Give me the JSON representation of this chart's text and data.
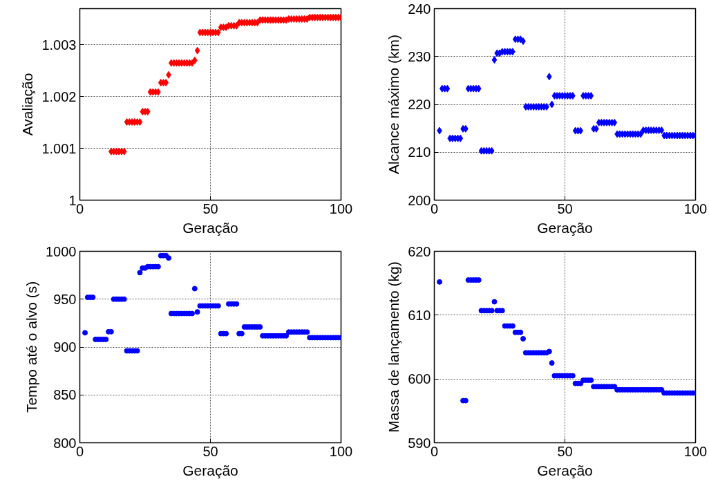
{
  "chart_data": [
    {
      "type": "scatter",
      "xlabel": "Geração",
      "ylabel": "Avaliação",
      "color": "#ff0000",
      "marker": "diamond",
      "grid": true,
      "xlim": [
        0,
        100
      ],
      "xticks": [
        0,
        50,
        100
      ],
      "ylim": [
        1,
        1.0037
      ],
      "yticks": [
        1,
        1.001,
        1.002,
        1.003
      ],
      "x": [
        12,
        13,
        14,
        15,
        16,
        17,
        18,
        19,
        20,
        21,
        22,
        23,
        24,
        25,
        26,
        27,
        28,
        29,
        30,
        31,
        32,
        33,
        34,
        35,
        36,
        37,
        38,
        39,
        40,
        41,
        42,
        43,
        44,
        45,
        46,
        47,
        48,
        49,
        50,
        51,
        52,
        53,
        54,
        55,
        56,
        57,
        58,
        59,
        60,
        61,
        62,
        63,
        64,
        65,
        66,
        67,
        68,
        69,
        70,
        71,
        72,
        73,
        74,
        75,
        76,
        77,
        78,
        79,
        80,
        81,
        82,
        83,
        84,
        85,
        86,
        87,
        88,
        89,
        90,
        91,
        92,
        93,
        94,
        95,
        96,
        97,
        98,
        99,
        100
      ],
      "values": [
        1.00094,
        1.00094,
        1.00094,
        1.00094,
        1.00094,
        1.00094,
        1.00151,
        1.00151,
        1.00151,
        1.00151,
        1.00151,
        1.00151,
        1.00171,
        1.00171,
        1.00171,
        1.00209,
        1.00209,
        1.00209,
        1.00209,
        1.00227,
        1.00227,
        1.00227,
        1.00242,
        1.00265,
        1.00265,
        1.00265,
        1.00265,
        1.00265,
        1.00265,
        1.00265,
        1.00265,
        1.00265,
        1.0027,
        1.00289,
        1.00324,
        1.00324,
        1.00324,
        1.00324,
        1.00324,
        1.00324,
        1.00324,
        1.00324,
        1.00334,
        1.00334,
        1.00334,
        1.00337,
        1.00337,
        1.00337,
        1.00337,
        1.00343,
        1.00343,
        1.00343,
        1.00343,
        1.00343,
        1.00343,
        1.00343,
        1.00343,
        1.00348,
        1.00348,
        1.00348,
        1.00348,
        1.00348,
        1.00348,
        1.00348,
        1.00348,
        1.00348,
        1.00348,
        1.00348,
        1.0035,
        1.0035,
        1.0035,
        1.0035,
        1.0035,
        1.0035,
        1.0035,
        1.0035,
        1.00353,
        1.00353,
        1.00353,
        1.00353,
        1.00353,
        1.00353,
        1.00353,
        1.00353,
        1.00353,
        1.00353,
        1.00353,
        1.00353,
        1.00353
      ]
    },
    {
      "type": "scatter",
      "xlabel": "Geração",
      "ylabel": "Alcance máximo (km)",
      "color": "#0000ff",
      "marker": "diamond",
      "grid": true,
      "xlim": [
        0,
        100
      ],
      "xticks": [
        0,
        50,
        100
      ],
      "ylim": [
        200,
        240
      ],
      "yticks": [
        200,
        210,
        220,
        230,
        240
      ],
      "x": [
        2,
        3,
        4,
        5,
        6,
        7,
        8,
        9,
        10,
        11,
        12,
        13,
        14,
        15,
        16,
        17,
        18,
        19,
        20,
        21,
        22,
        23,
        24,
        25,
        26,
        27,
        28,
        29,
        30,
        31,
        32,
        33,
        34,
        35,
        36,
        37,
        38,
        39,
        40,
        41,
        42,
        43,
        44,
        45,
        46,
        47,
        48,
        49,
        50,
        51,
        52,
        53,
        54,
        55,
        56,
        57,
        58,
        59,
        60,
        61,
        62,
        63,
        64,
        65,
        66,
        67,
        68,
        69,
        70,
        71,
        72,
        73,
        74,
        75,
        76,
        77,
        78,
        79,
        80,
        81,
        82,
        83,
        84,
        85,
        86,
        87,
        88,
        89,
        90,
        91,
        92,
        93,
        94,
        95,
        96,
        97,
        98,
        99,
        100
      ],
      "values": [
        214.5,
        223.3,
        223.3,
        223.3,
        212.9,
        212.9,
        212.9,
        212.9,
        212.9,
        214.9,
        214.9,
        223.3,
        223.3,
        223.3,
        223.3,
        223.3,
        210.3,
        210.3,
        210.3,
        210.3,
        210.3,
        229.3,
        230.7,
        230.7,
        231.0,
        231.0,
        231.0,
        231.0,
        231.0,
        233.6,
        233.6,
        233.6,
        233.2,
        219.5,
        219.5,
        219.5,
        219.5,
        219.5,
        219.5,
        219.5,
        219.5,
        219.5,
        225.8,
        220.0,
        221.8,
        221.8,
        221.8,
        221.8,
        221.8,
        221.8,
        221.8,
        221.8,
        214.5,
        214.5,
        214.5,
        221.8,
        221.8,
        221.8,
        221.8,
        214.9,
        214.9,
        216.2,
        216.2,
        216.2,
        216.2,
        216.2,
        216.2,
        216.2,
        213.8,
        213.8,
        213.8,
        213.8,
        213.8,
        213.8,
        213.8,
        213.8,
        213.8,
        213.8,
        214.6,
        214.6,
        214.6,
        214.6,
        214.6,
        214.6,
        214.6,
        214.6,
        213.5,
        213.5,
        213.5,
        213.5,
        213.5,
        213.5,
        213.5,
        213.5,
        213.5,
        213.5,
        213.5,
        213.5,
        213.5
      ]
    },
    {
      "type": "scatter",
      "xlabel": "Geração",
      "ylabel": "Tempo até o alvo (s)",
      "color": "#0000ff",
      "marker": "circle",
      "grid": true,
      "xlim": [
        0,
        100
      ],
      "xticks": [
        0,
        50,
        100
      ],
      "ylim": [
        800,
        1000
      ],
      "yticks": [
        800,
        850,
        900,
        950,
        1000
      ],
      "x": [
        2,
        3,
        4,
        5,
        6,
        7,
        8,
        9,
        10,
        11,
        12,
        13,
        14,
        15,
        16,
        17,
        18,
        19,
        20,
        21,
        22,
        23,
        24,
        25,
        26,
        27,
        28,
        29,
        30,
        31,
        32,
        33,
        34,
        35,
        36,
        37,
        38,
        39,
        40,
        41,
        42,
        43,
        44,
        45,
        46,
        47,
        48,
        49,
        50,
        51,
        52,
        53,
        54,
        55,
        56,
        57,
        58,
        59,
        60,
        61,
        62,
        63,
        64,
        65,
        66,
        67,
        68,
        69,
        70,
        71,
        72,
        73,
        74,
        75,
        76,
        77,
        78,
        79,
        80,
        81,
        82,
        83,
        84,
        85,
        86,
        87,
        88,
        89,
        90,
        91,
        92,
        93,
        94,
        95,
        96,
        97,
        98,
        99,
        100
      ],
      "values": [
        914.9,
        951.9,
        951.9,
        951.9,
        908,
        908,
        908,
        908,
        908,
        916,
        916,
        950,
        950,
        950,
        950,
        950,
        896,
        896,
        896,
        896,
        896,
        977.7,
        982.5,
        982.5,
        984,
        984,
        984,
        984,
        984,
        995.5,
        995.5,
        995.5,
        993,
        935,
        935,
        935,
        935,
        935,
        935,
        935,
        935,
        935,
        961,
        936.7,
        943,
        943,
        943,
        943,
        943,
        943,
        943,
        943,
        914,
        914,
        914,
        945,
        945,
        945,
        945,
        914,
        914,
        921,
        921,
        921,
        921,
        921,
        921,
        921,
        911.7,
        911.7,
        911.7,
        911.7,
        911.7,
        911.7,
        911.7,
        911.7,
        911.7,
        911.7,
        915.7,
        915.7,
        915.7,
        915.7,
        915.7,
        915.7,
        915.7,
        915.7,
        909.8,
        909.8,
        909.8,
        909.8,
        909.8,
        909.8,
        909.8,
        909.8,
        909.8,
        909.8,
        909.8,
        909.8,
        909.8
      ]
    },
    {
      "type": "scatter",
      "xlabel": "Geração",
      "ylabel": "Massa de lançamento (kg)",
      "color": "#0000ff",
      "marker": "circle",
      "grid": true,
      "xlim": [
        0,
        100
      ],
      "xticks": [
        0,
        50,
        100
      ],
      "ylim": [
        590,
        620
      ],
      "yticks": [
        590,
        600,
        610,
        620
      ],
      "x": [
        2,
        11,
        12,
        13,
        14,
        15,
        16,
        17,
        18,
        19,
        20,
        21,
        22,
        23,
        24,
        25,
        26,
        27,
        28,
        29,
        30,
        31,
        32,
        33,
        34,
        35,
        36,
        37,
        38,
        39,
        40,
        41,
        42,
        43,
        44,
        45,
        46,
        47,
        48,
        49,
        50,
        51,
        52,
        53,
        54,
        55,
        56,
        57,
        58,
        59,
        60,
        61,
        62,
        63,
        64,
        65,
        66,
        67,
        68,
        69,
        70,
        71,
        72,
        73,
        74,
        75,
        76,
        77,
        78,
        79,
        80,
        81,
        82,
        83,
        84,
        85,
        86,
        87,
        88,
        89,
        90,
        91,
        92,
        93,
        94,
        95,
        96,
        97,
        98,
        99,
        100
      ],
      "values": [
        615.2,
        596.6,
        596.6,
        615.5,
        615.5,
        615.5,
        615.5,
        615.5,
        610.7,
        610.7,
        610.7,
        610.7,
        610.7,
        612.1,
        610.7,
        610.7,
        610.7,
        608.3,
        608.3,
        608.3,
        608.3,
        607.3,
        607.3,
        607.3,
        606.3,
        604.1,
        604.1,
        604.1,
        604.1,
        604.1,
        604.1,
        604.1,
        604.1,
        604.1,
        604.3,
        602.5,
        600.5,
        600.5,
        600.5,
        600.5,
        600.5,
        600.5,
        600.5,
        600.5,
        599.3,
        599.3,
        599.3,
        599.8,
        599.8,
        599.8,
        599.8,
        598.8,
        598.8,
        598.8,
        598.8,
        598.8,
        598.8,
        598.8,
        598.8,
        598.8,
        598.3,
        598.3,
        598.3,
        598.3,
        598.3,
        598.3,
        598.3,
        598.3,
        598.3,
        598.3,
        598.3,
        598.3,
        598.3,
        598.3,
        598.3,
        598.3,
        598.3,
        598.3,
        597.8,
        597.8,
        597.8,
        597.8,
        597.8,
        597.8,
        597.8,
        597.8,
        597.8,
        597.8,
        597.8,
        597.8,
        597.8
      ]
    }
  ]
}
